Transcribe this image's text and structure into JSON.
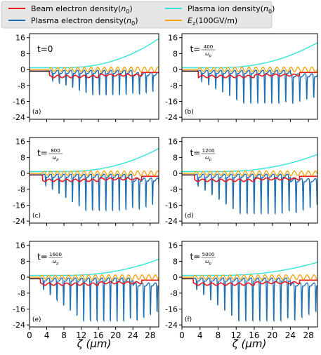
{
  "chart_data": {
    "type": "line",
    "legend": {
      "placement": "top",
      "items": [
        {
          "key": "beam",
          "label": "Beam electron density(",
          "sym": "n",
          "sub": "0",
          "tail": ")",
          "color": "#e8191f"
        },
        {
          "key": "ion",
          "label": "Plasma ion density(",
          "sym": "n",
          "sub": "0",
          "tail": ")",
          "color": "#34e6d8"
        },
        {
          "key": "plasma",
          "label": "Plasma electron density(",
          "sym": "n",
          "sub": "0",
          "tail": ")",
          "color": "#1f6fb4"
        },
        {
          "key": "ez",
          "label": "",
          "sym": "E",
          "sub": "z",
          "tail": "(100GV/m)",
          "color": "#f5a516"
        }
      ]
    },
    "xlabel": {
      "sym": "ζ",
      "unit": "(μm)"
    },
    "x_ticks": [
      "0",
      "4",
      "8",
      "12",
      "16",
      "20",
      "24",
      "28"
    ],
    "y_ticks": [
      "16",
      "8",
      "0",
      "-8",
      "-16",
      "-24"
    ],
    "xlim": [
      0,
      30
    ],
    "ylim": [
      -25,
      18
    ],
    "grid": false,
    "panels": [
      {
        "tag": "(a)",
        "time": "t=0",
        "num": "",
        "den": "",
        "ion_max": 15.5,
        "dip_scale": 0.45,
        "beam_start": 4.6
      },
      {
        "tag": "(b)",
        "time": "t=",
        "num": "400",
        "den": "ω",
        "den_sub": "p",
        "ion_max": 13.5,
        "dip_scale": 0.7,
        "beam_start": 3.6
      },
      {
        "tag": "(c)",
        "time": "t=",
        "num": "800",
        "den": "ω",
        "den_sub": "p",
        "ion_max": 12.5,
        "dip_scale": 0.8,
        "beam_start": 3.0
      },
      {
        "tag": "(d)",
        "time": "t=",
        "num": "1200",
        "den": "ω",
        "den_sub": "p",
        "ion_max": 9.5,
        "dip_scale": 0.9,
        "beam_start": 2.8
      },
      {
        "tag": "(e)",
        "time": "t=",
        "num": "1600",
        "den": "ω",
        "den_sub": "p",
        "ion_max": 9.0,
        "dip_scale": 1.0,
        "beam_start": 2.5
      },
      {
        "tag": "(f)",
        "time": "t=",
        "num": "5000",
        "den": "ω",
        "den_sub": "p",
        "ion_max": 7.5,
        "dip_scale": 1.0,
        "beam_start": 2.5
      }
    ]
  }
}
